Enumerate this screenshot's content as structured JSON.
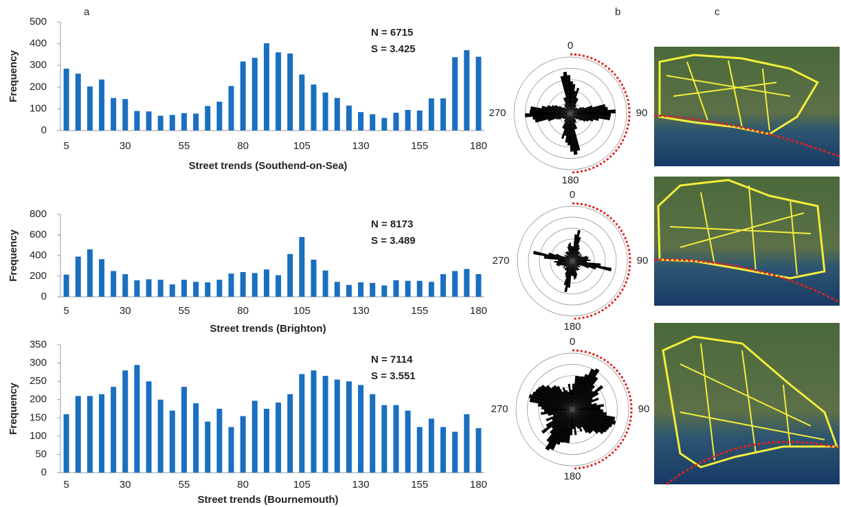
{
  "panel_labels": [
    "a",
    "b",
    "c"
  ],
  "chart_data": [
    {
      "type": "bar",
      "x_label": "Street trends (Southend-on-Sea)",
      "y_label": "Frequency",
      "annotations": [
        "N = 6715",
        "S = 3.425"
      ],
      "categories": [
        5,
        null,
        null,
        null,
        null,
        30,
        null,
        null,
        null,
        null,
        55,
        null,
        null,
        null,
        null,
        80,
        null,
        null,
        null,
        null,
        105,
        null,
        null,
        null,
        null,
        130,
        null,
        null,
        null,
        null,
        155,
        null,
        null,
        null,
        null,
        180
      ],
      "values": [
        285,
        262,
        203,
        235,
        150,
        145,
        90,
        88,
        68,
        72,
        80,
        78,
        113,
        133,
        205,
        318,
        335,
        402,
        360,
        355,
        258,
        212,
        175,
        150,
        115,
        85,
        75,
        58,
        82,
        95,
        92,
        148,
        148,
        338,
        370,
        340
      ],
      "color": "#1a6fc0",
      "ylim": [
        0,
        500
      ],
      "yticks": [
        0,
        100,
        200,
        300,
        400,
        500
      ],
      "rose": {
        "angle_ticks": [
          0,
          90,
          180,
          270
        ],
        "color": "#000000"
      }
    },
    {
      "type": "bar",
      "x_label": "Street trends (Brighton)",
      "y_label": "Frequency",
      "annotations": [
        "N = 8173",
        "S = 3.489"
      ],
      "categories": [
        5,
        null,
        null,
        null,
        null,
        30,
        null,
        null,
        null,
        null,
        55,
        null,
        null,
        null,
        null,
        80,
        null,
        null,
        null,
        null,
        105,
        null,
        null,
        null,
        null,
        130,
        null,
        null,
        null,
        null,
        155,
        null,
        null,
        null,
        null,
        180
      ],
      "values": [
        215,
        390,
        460,
        365,
        250,
        220,
        160,
        170,
        165,
        120,
        165,
        145,
        140,
        165,
        225,
        240,
        230,
        265,
        210,
        415,
        580,
        360,
        255,
        145,
        115,
        140,
        135,
        110,
        160,
        155,
        155,
        145,
        220,
        250,
        270,
        220
      ],
      "color": "#1a6fc0",
      "ylim": [
        0,
        800
      ],
      "yticks": [
        0,
        200,
        400,
        600,
        800
      ],
      "rose": {
        "angle_ticks": [
          0,
          90,
          180,
          270
        ],
        "color": "#000000"
      }
    },
    {
      "type": "bar",
      "x_label": "Street trends (Bournemouth)",
      "y_label": "Frequency",
      "annotations": [
        "N = 7114",
        "S  = 3.551"
      ],
      "categories": [
        5,
        null,
        null,
        null,
        null,
        30,
        null,
        null,
        null,
        null,
        55,
        null,
        null,
        null,
        null,
        80,
        null,
        null,
        null,
        null,
        105,
        null,
        null,
        null,
        null,
        130,
        null,
        null,
        null,
        null,
        155,
        null,
        null,
        null,
        null,
        180
      ],
      "values": [
        160,
        210,
        210,
        215,
        235,
        280,
        295,
        250,
        200,
        170,
        235,
        190,
        140,
        175,
        125,
        155,
        197,
        175,
        192,
        215,
        270,
        280,
        265,
        255,
        250,
        240,
        215,
        185,
        185,
        170,
        125,
        148,
        125,
        112,
        160,
        122
      ],
      "color": "#1a6fc0",
      "ylim": [
        0,
        350
      ],
      "yticks": [
        0,
        50,
        100,
        150,
        200,
        250,
        300,
        350
      ],
      "rose": {
        "angle_ticks": [
          0,
          90,
          180,
          270
        ],
        "color": "#000000"
      }
    }
  ]
}
